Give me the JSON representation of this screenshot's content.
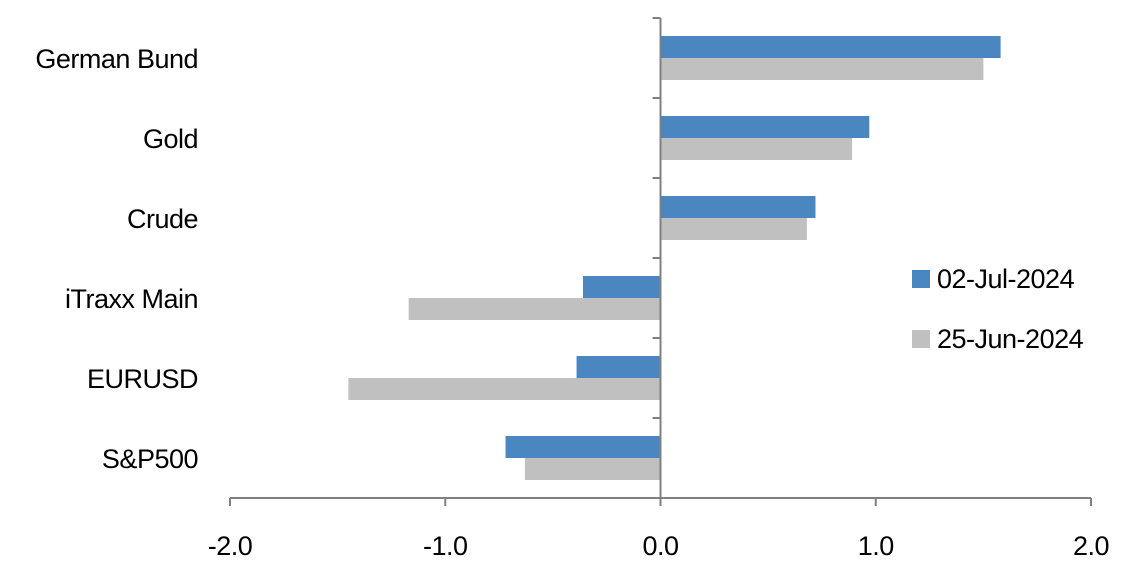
{
  "chart_data": {
    "type": "bar",
    "orientation": "horizontal",
    "title": "",
    "xlabel": "",
    "ylabel": "",
    "categories": [
      "German Bund",
      "Gold",
      "Crude",
      "iTraxx Main",
      "EURUSD",
      "S&P500"
    ],
    "series": [
      {
        "name": "02-Jul-2024",
        "color": "#4a86c0",
        "values": [
          1.58,
          0.97,
          0.72,
          -0.36,
          -0.39,
          -0.72
        ]
      },
      {
        "name": "25-Jun-2024",
        "color": "#c0c0c0",
        "values": [
          1.5,
          0.89,
          0.68,
          -1.17,
          -1.45,
          -0.63
        ]
      }
    ],
    "xlim": [
      -2.0,
      2.0
    ],
    "xticks": [
      "-2.0",
      "-1.0",
      "0.0",
      "1.0",
      "2.0"
    ],
    "grid": false,
    "legend_position": "right"
  }
}
